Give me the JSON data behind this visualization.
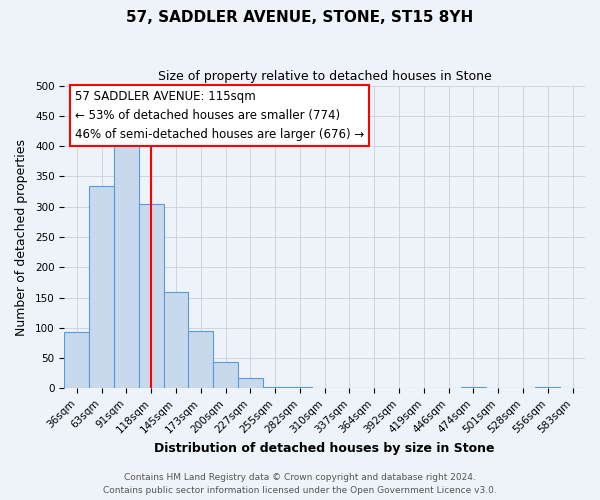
{
  "title": "57, SADDLER AVENUE, STONE, ST15 8YH",
  "subtitle": "Size of property relative to detached houses in Stone",
  "xlabel": "Distribution of detached houses by size in Stone",
  "ylabel": "Number of detached properties",
  "bar_color": "#c8d9ee",
  "bar_edge_color": "#5b9bd5",
  "bins": [
    "36sqm",
    "63sqm",
    "91sqm",
    "118sqm",
    "145sqm",
    "173sqm",
    "200sqm",
    "227sqm",
    "255sqm",
    "282sqm",
    "310sqm",
    "337sqm",
    "364sqm",
    "392sqm",
    "419sqm",
    "446sqm",
    "474sqm",
    "501sqm",
    "528sqm",
    "556sqm",
    "583sqm"
  ],
  "values": [
    93,
    335,
    408,
    305,
    160,
    95,
    44,
    18,
    3,
    3,
    0,
    0,
    0,
    0,
    0,
    0,
    2,
    0,
    0,
    2,
    0
  ],
  "ylim": [
    0,
    500
  ],
  "yticks": [
    0,
    50,
    100,
    150,
    200,
    250,
    300,
    350,
    400,
    450,
    500
  ],
  "red_line_bin": "118sqm",
  "annotation_line1": "57 SADDLER AVENUE: 115sqm",
  "annotation_line2": "← 53% of detached houses are smaller (774)",
  "annotation_line3": "46% of semi-detached houses are larger (676) →",
  "footer_line1": "Contains HM Land Registry data © Crown copyright and database right 2024.",
  "footer_line2": "Contains public sector information licensed under the Open Government Licence v3.0.",
  "background_color": "#eef2f9",
  "grid_color": "#c8cfdc",
  "title_fontsize": 11,
  "subtitle_fontsize": 9,
  "axis_label_fontsize": 9,
  "tick_fontsize": 7.5,
  "annotation_fontsize": 8.5,
  "footer_fontsize": 6.5
}
